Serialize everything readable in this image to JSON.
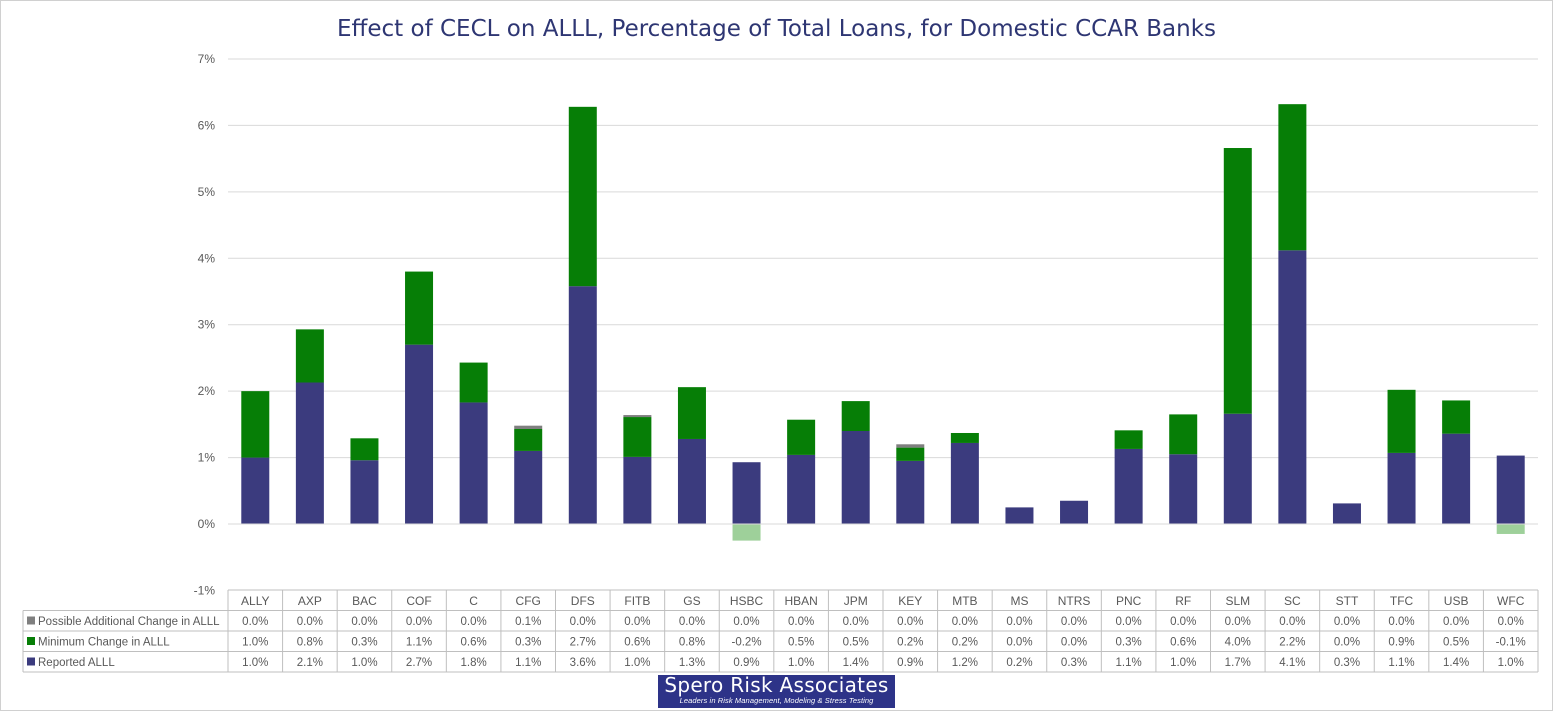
{
  "chart_data": {
    "type": "bar",
    "stacked": true,
    "title": "Effect of CECL on ALLL, Percentage of Total Loans, for Domestic CCAR Banks",
    "categories": [
      "ALLY",
      "AXP",
      "BAC",
      "COF",
      "C",
      "CFG",
      "DFS",
      "FITB",
      "GS",
      "HSBC",
      "HBAN",
      "JPM",
      "KEY",
      "MTB",
      "MS",
      "NTRS",
      "PNC",
      "RF",
      "SLM",
      "SC",
      "STT",
      "TFC",
      "USB",
      "WFC"
    ],
    "yticks": [
      "7%",
      "6%",
      "5%",
      "4%",
      "3%",
      "2%",
      "1%",
      "0%",
      "-1%"
    ],
    "ylim": [
      -1,
      7
    ],
    "grid": true,
    "data_table": true,
    "series": [
      {
        "name": "Possible Additional Change in ALLL",
        "color": "#7f7f7f",
        "values": [
          0.0,
          0.0,
          0.0,
          0.0,
          0.0,
          0.05,
          0.0,
          0.03,
          0.0,
          0.0,
          0.0,
          0.0,
          0.05,
          0.0,
          0.0,
          0.0,
          0.0,
          0.0,
          0.0,
          0.0,
          0.0,
          0.0,
          0.0,
          0.0
        ],
        "labels": [
          "0.0%",
          "0.0%",
          "0.0%",
          "0.0%",
          "0.0%",
          "0.1%",
          "0.0%",
          "0.0%",
          "0.0%",
          "0.0%",
          "0.0%",
          "0.0%",
          "0.0%",
          "0.0%",
          "0.0%",
          "0.0%",
          "0.0%",
          "0.0%",
          "0.0%",
          "0.0%",
          "0.0%",
          "0.0%",
          "0.0%",
          "0.0%"
        ]
      },
      {
        "name": "Minimum Change in ALLL",
        "color": "#067e06",
        "negative_color": "#9ed09a",
        "values": [
          1.0,
          0.8,
          0.33,
          1.1,
          0.6,
          0.33,
          2.7,
          0.6,
          0.78,
          -0.25,
          0.53,
          0.45,
          0.2,
          0.15,
          0.0,
          0.0,
          0.28,
          0.6,
          4.0,
          2.2,
          0.0,
          0.95,
          0.5,
          -0.15
        ],
        "labels": [
          "1.0%",
          "0.8%",
          "0.3%",
          "1.1%",
          "0.6%",
          "0.3%",
          "2.7%",
          "0.6%",
          "0.8%",
          "-0.2%",
          "0.5%",
          "0.5%",
          "0.2%",
          "0.2%",
          "0.0%",
          "0.0%",
          "0.3%",
          "0.6%",
          "4.0%",
          "2.2%",
          "0.0%",
          "0.9%",
          "0.5%",
          "-0.1%"
        ]
      },
      {
        "name": "Reported ALLL",
        "color": "#3b3b7e",
        "values": [
          1.0,
          2.13,
          0.96,
          2.7,
          1.83,
          1.1,
          3.58,
          1.01,
          1.28,
          0.93,
          1.04,
          1.4,
          0.95,
          1.22,
          0.25,
          0.35,
          1.13,
          1.05,
          1.66,
          4.12,
          0.31,
          1.07,
          1.36,
          1.03
        ],
        "labels": [
          "1.0%",
          "2.1%",
          "1.0%",
          "2.7%",
          "1.8%",
          "1.1%",
          "3.6%",
          "1.0%",
          "1.3%",
          "0.9%",
          "1.0%",
          "1.4%",
          "0.9%",
          "1.2%",
          "0.2%",
          "0.3%",
          "1.1%",
          "1.0%",
          "1.7%",
          "4.1%",
          "0.3%",
          "1.1%",
          "1.4%",
          "1.0%"
        ]
      }
    ]
  },
  "logo": {
    "name": "Spero Risk Associates",
    "tagline": "Leaders in Risk Management, Modeling & Stress Testing"
  }
}
